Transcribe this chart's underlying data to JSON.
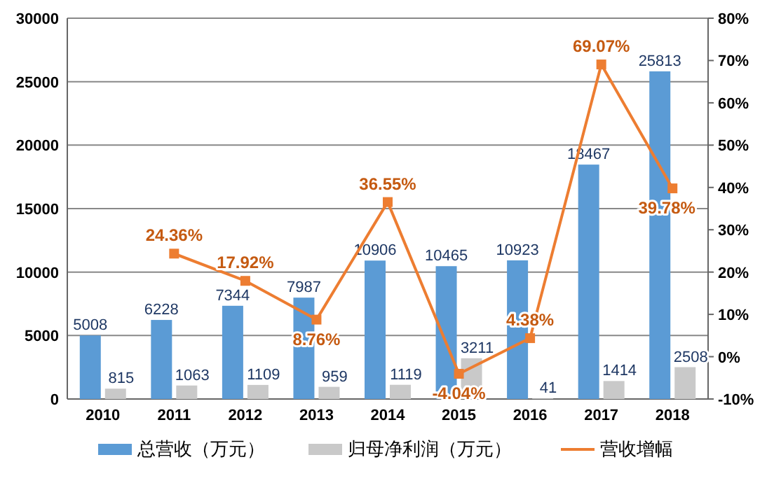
{
  "chart_data": {
    "type": "bar",
    "categories": [
      "2010",
      "2011",
      "2012",
      "2013",
      "2014",
      "2015",
      "2016",
      "2017",
      "2018"
    ],
    "series": [
      {
        "name": "总营收（万元）",
        "color": "#5b9bd5",
        "values": [
          5008,
          6228,
          7344,
          7987,
          10906,
          10465,
          10923,
          18467,
          25813
        ]
      },
      {
        "name": "归母净利润（万元）",
        "color": "#c9c9c9",
        "values": [
          815,
          1063,
          1109,
          959,
          1119,
          3211,
          41,
          1414,
          2508
        ]
      },
      {
        "name": "营收增幅",
        "type": "line",
        "axis": "y2",
        "color": "#ed7d31",
        "marker": "square",
        "values": [
          null,
          24.36,
          17.92,
          8.76,
          36.55,
          -4.04,
          4.38,
          69.07,
          39.78
        ],
        "value_labels": [
          null,
          "24.36%",
          "17.92%",
          "8.76%",
          "36.55%",
          "-4.04%",
          "4.38%",
          "69.07%",
          "39.78%"
        ]
      }
    ],
    "data_labels": true,
    "ylim": [
      0,
      30000
    ],
    "yticks": [
      0,
      5000,
      10000,
      15000,
      20000,
      25000,
      30000
    ],
    "y2lim": [
      -10,
      80
    ],
    "y2ticks": [
      {
        "value": -10,
        "label": "-10%"
      },
      {
        "value": 0,
        "label": "0%"
      },
      {
        "value": 10,
        "label": "10%"
      },
      {
        "value": 20,
        "label": "20%"
      },
      {
        "value": 30,
        "label": "30%"
      },
      {
        "value": 40,
        "label": "40%"
      },
      {
        "value": 50,
        "label": "50%"
      },
      {
        "value": 60,
        "label": "60%"
      },
      {
        "value": 70,
        "label": "70%"
      },
      {
        "value": 80,
        "label": "80%"
      }
    ],
    "grid": "y",
    "legend": "bottom"
  }
}
